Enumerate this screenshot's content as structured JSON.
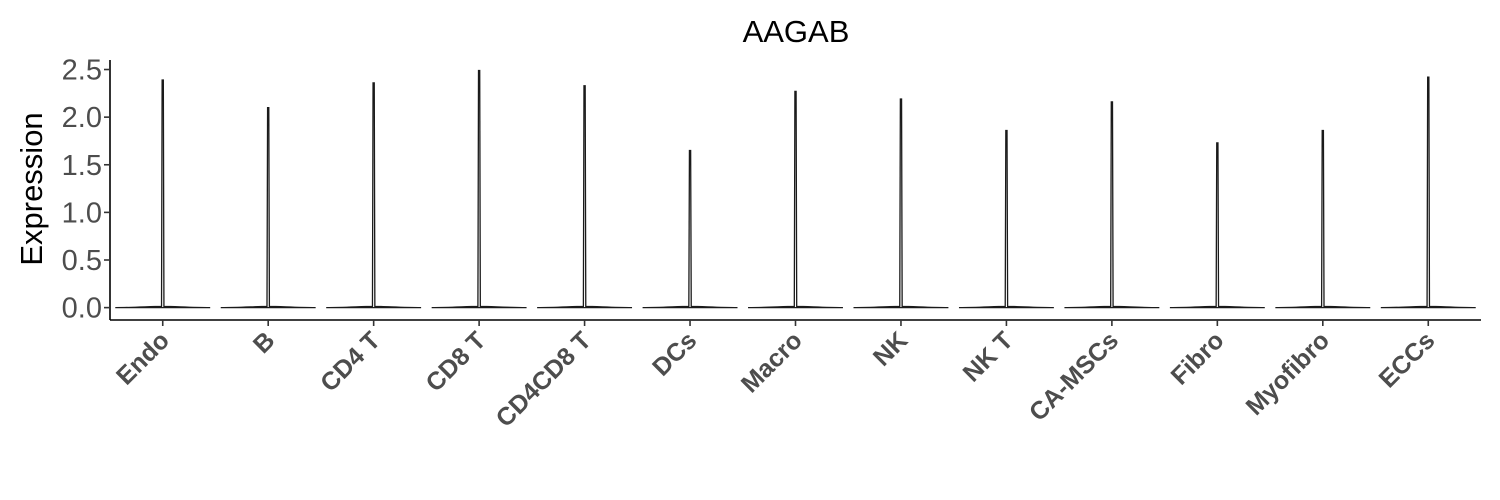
{
  "chart_data": {
    "type": "violin",
    "title": "AAGAB",
    "ylabel": "Expression",
    "xlabel": "",
    "ylim": [
      -0.13,
      2.6
    ],
    "yticks": [
      0.0,
      0.5,
      1.0,
      1.5,
      2.0,
      2.5
    ],
    "ytick_labels": [
      "0.0",
      "0.5",
      "1.0",
      "1.5",
      "2.0",
      "2.5"
    ],
    "categories": [
      "Endo",
      "B",
      "CD4 T",
      "CD8 T",
      "CD4CD8 T",
      "DCs",
      "Macro",
      "NK",
      "NK T",
      "CA-MSCs",
      "Fibro",
      "Myofibro",
      "ECCs"
    ],
    "max_values": [
      2.39,
      2.1,
      2.36,
      2.49,
      2.33,
      1.65,
      2.27,
      2.19,
      1.86,
      2.16,
      1.73,
      1.86,
      2.42
    ],
    "min_values": [
      0,
      0,
      0,
      0,
      0,
      0,
      0,
      0,
      0,
      0,
      0,
      0,
      0
    ],
    "legend": "none",
    "grid": false,
    "colors": {
      "stroke": "#1a1a1a",
      "axis": "#000000",
      "tick_text": "#4d4d4d"
    }
  }
}
